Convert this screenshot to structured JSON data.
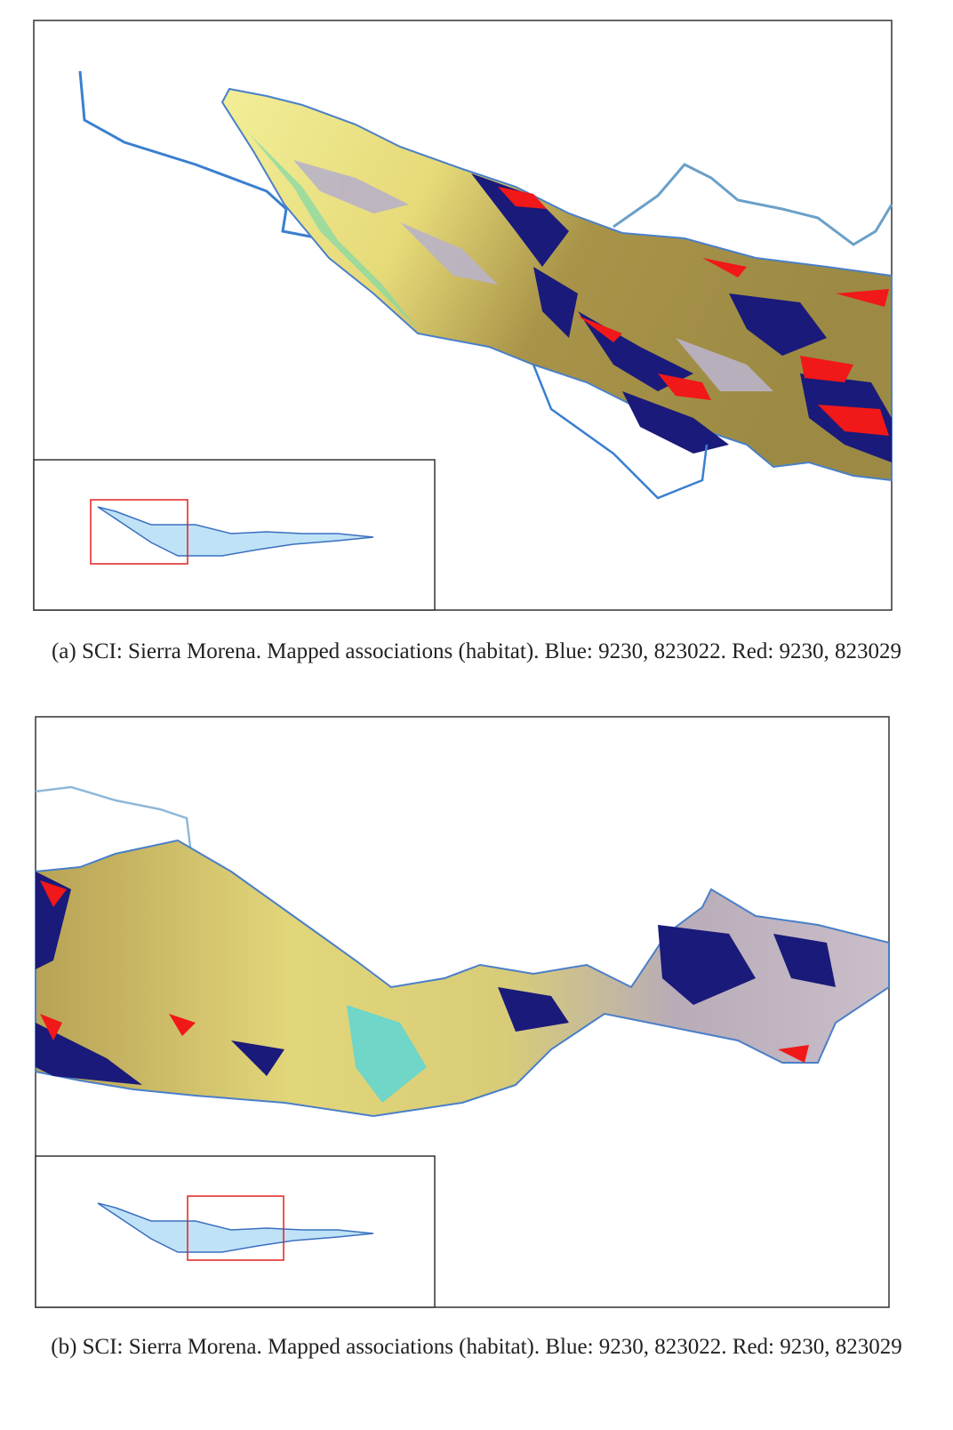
{
  "panels": [
    {
      "label": "(a)",
      "caption": "SCI: Sierra Morena. Mapped associations (habitat). Blue: 9230, 823022. Red: 9230, 823029"
    },
    {
      "label": "(b)",
      "caption": "SCI: Sierra Morena. Mapped associations (habitat). Blue: 9230, 823022. Red: 9230, 823029"
    }
  ]
}
